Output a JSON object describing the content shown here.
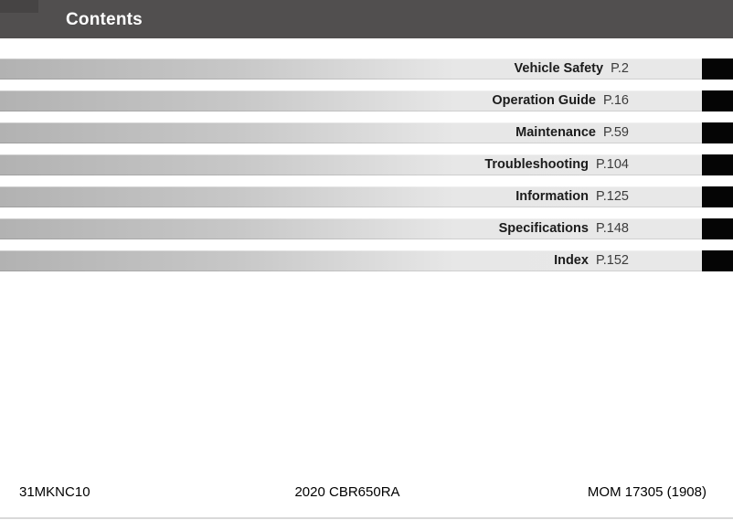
{
  "header": {
    "title": "Contents"
  },
  "contents": {
    "items": [
      {
        "label": "Vehicle Safety",
        "page_ref": "P.2"
      },
      {
        "label": "Operation Guide",
        "page_ref": "P.16"
      },
      {
        "label": "Maintenance",
        "page_ref": "P.59"
      },
      {
        "label": "Troubleshooting",
        "page_ref": "P.104"
      },
      {
        "label": "Information",
        "page_ref": "P.125"
      },
      {
        "label": "Specifications",
        "page_ref": "P.148"
      },
      {
        "label": "Index",
        "page_ref": "P.152"
      }
    ]
  },
  "footer": {
    "left": "31MKNC10",
    "center": "2020 CBR650RA",
    "right": "MOM 17305 (1908)"
  },
  "colors": {
    "header_bg": "#514f4f",
    "header_corner": "#464444",
    "row_gradient_start": "#b2b2b2",
    "row_gradient_end": "#e8e8e8",
    "section_tab": "#050505",
    "label_text": "#1b1b1b",
    "page_ref_text": "#3c3c3c",
    "bottom_rule": "#d9d9d9"
  }
}
